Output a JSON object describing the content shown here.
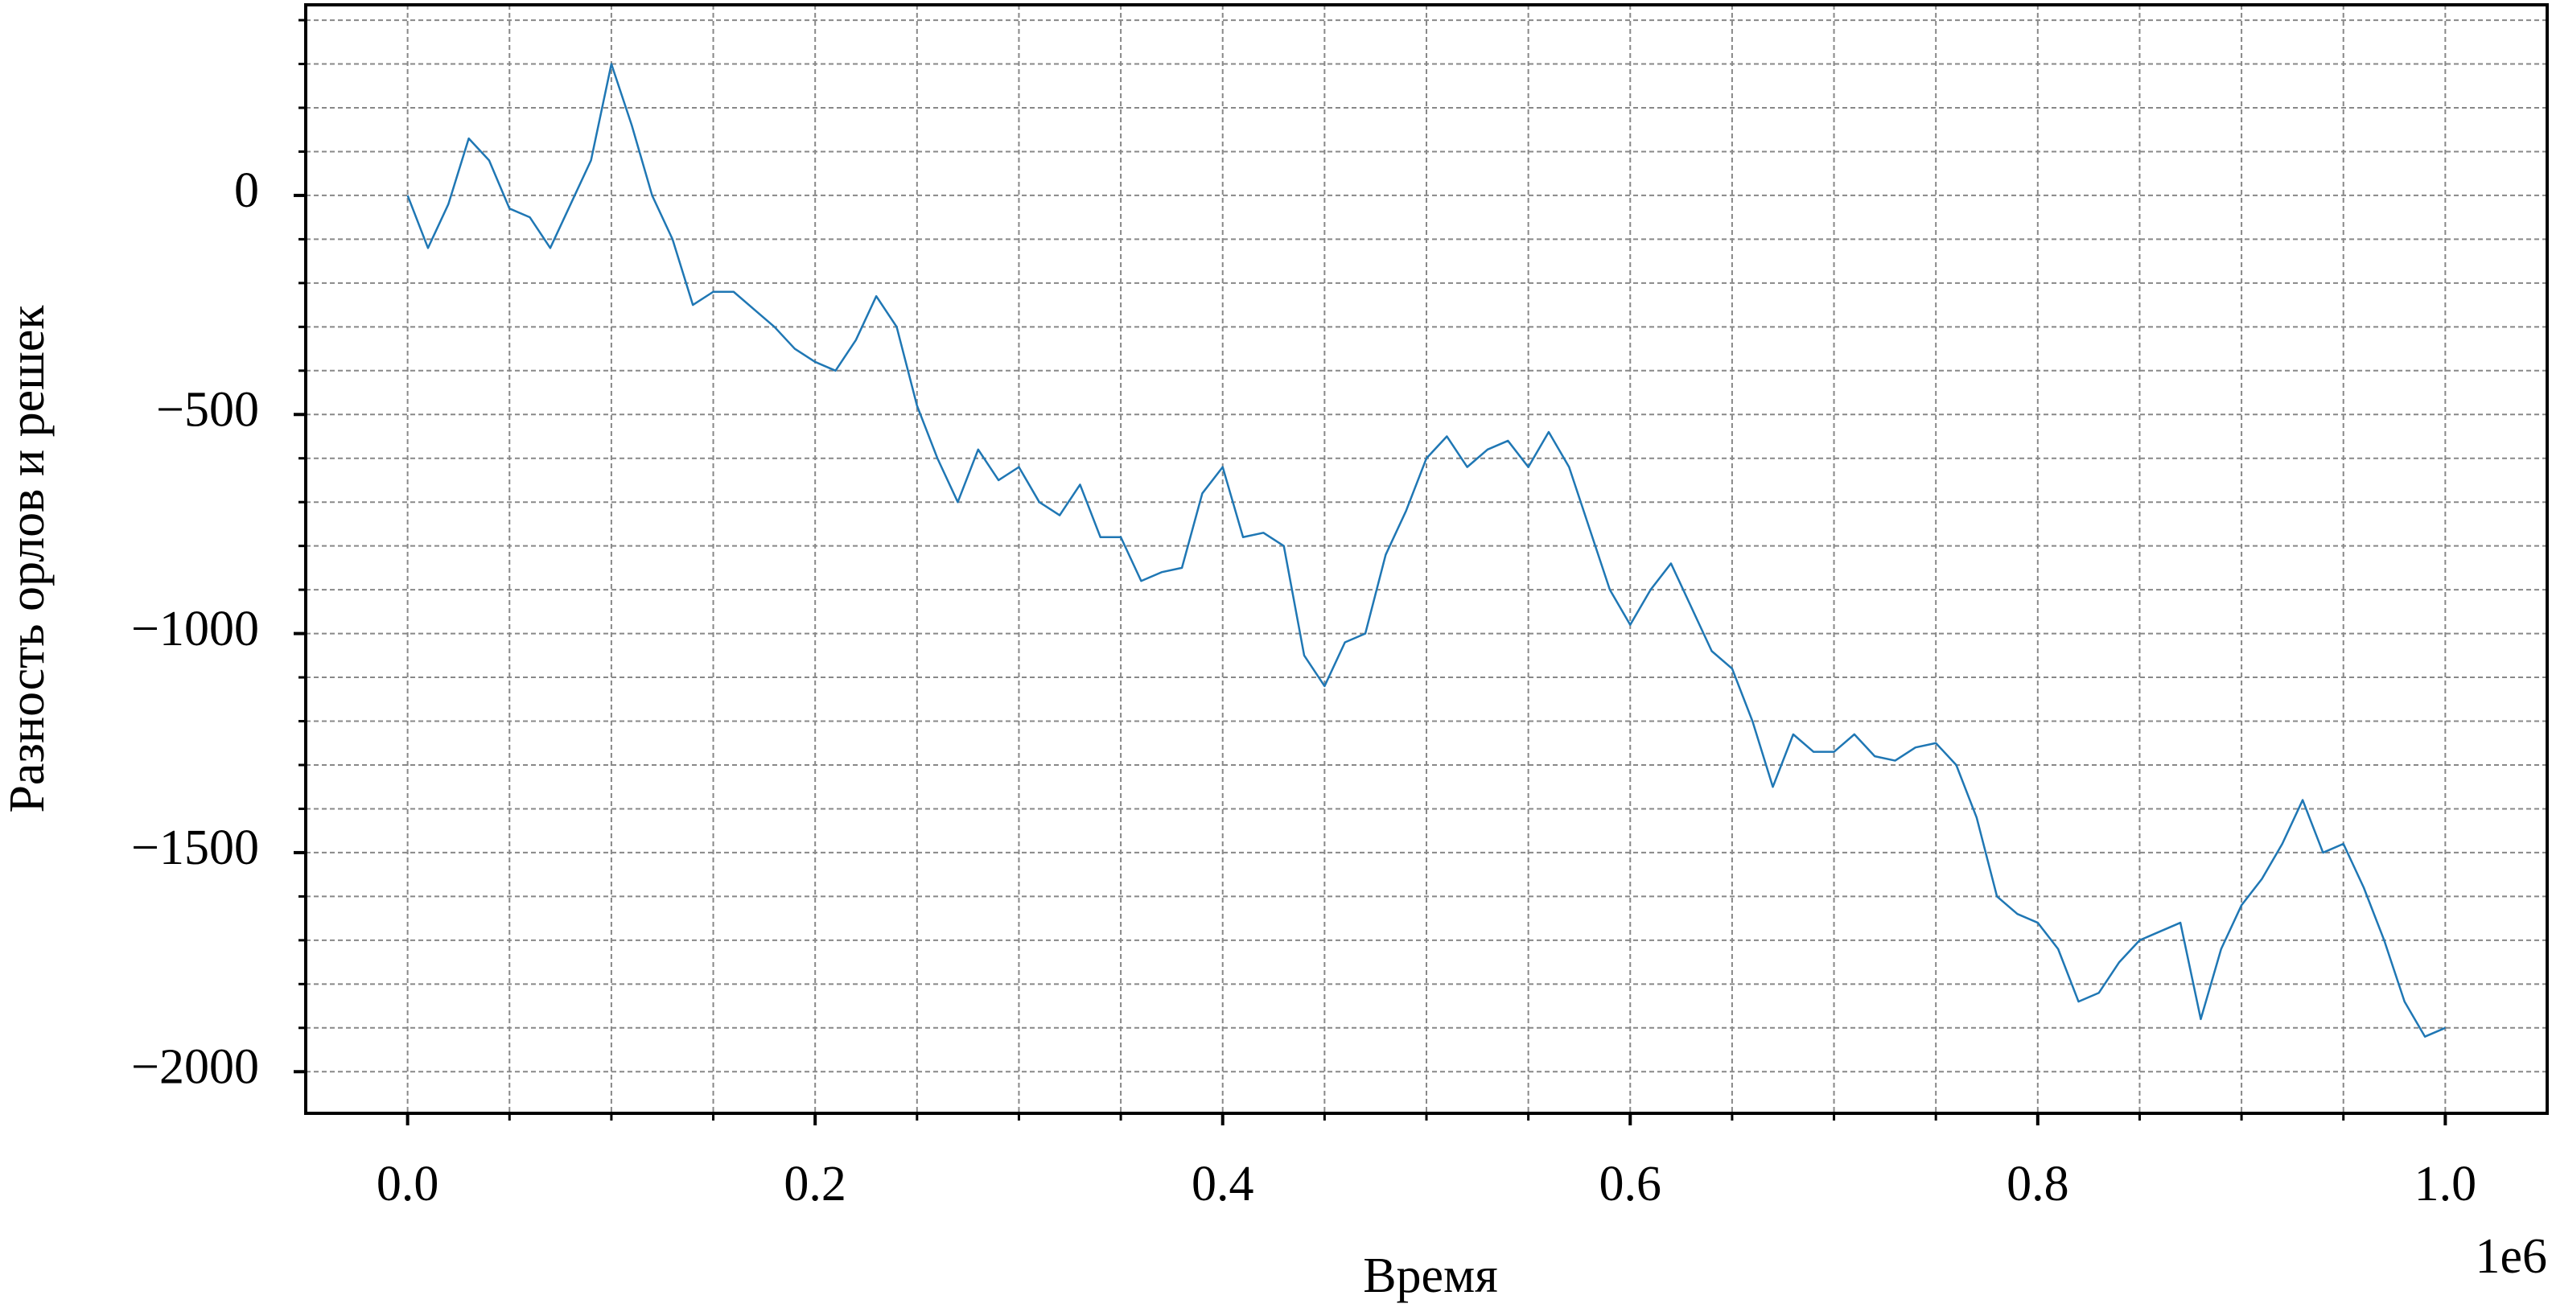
{
  "chart_data": {
    "type": "line",
    "xlabel": "Время",
    "ylabel": "Разность орлов и решек",
    "x_offset_label": "1e6",
    "x": [
      0,
      10000,
      20000,
      30000,
      40000,
      50000,
      60000,
      70000,
      80000,
      90000,
      100000,
      110000,
      120000,
      130000,
      140000,
      150000,
      160000,
      170000,
      180000,
      190000,
      200000,
      210000,
      220000,
      230000,
      240000,
      250000,
      260000,
      270000,
      280000,
      290000,
      300000,
      310000,
      320000,
      330000,
      340000,
      350000,
      360000,
      370000,
      380000,
      390000,
      400000,
      410000,
      420000,
      430000,
      440000,
      450000,
      460000,
      470000,
      480000,
      490000,
      500000,
      510000,
      520000,
      530000,
      540000,
      550000,
      560000,
      570000,
      580000,
      590000,
      600000,
      610000,
      620000,
      630000,
      640000,
      650000,
      660000,
      670000,
      680000,
      690000,
      700000,
      710000,
      720000,
      730000,
      740000,
      750000,
      760000,
      770000,
      780000,
      790000,
      800000,
      810000,
      820000,
      830000,
      840000,
      850000,
      860000,
      870000,
      880000,
      890000,
      900000,
      910000,
      920000,
      930000,
      940000,
      950000,
      960000,
      970000,
      980000,
      990000,
      1000000
    ],
    "series": [
      {
        "color": "#1f77b4",
        "values": [
          0,
          -120,
          -20,
          130,
          80,
          -30,
          -50,
          -120,
          -20,
          80,
          300,
          160,
          0,
          -100,
          -250,
          -220,
          -220,
          -260,
          -300,
          -350,
          -380,
          -400,
          -330,
          -230,
          -300,
          -480,
          -600,
          -700,
          -580,
          -650,
          -620,
          -700,
          -730,
          -660,
          -780,
          -780,
          -880,
          -860,
          -850,
          -680,
          -620,
          -780,
          -770,
          -800,
          -1050,
          -1120,
          -1020,
          -1000,
          -820,
          -720,
          -600,
          -550,
          -620,
          -580,
          -560,
          -620,
          -540,
          -620,
          -760,
          -900,
          -980,
          -900,
          -840,
          -940,
          -1040,
          -1080,
          -1200,
          -1350,
          -1230,
          -1270,
          -1270,
          -1230,
          -1280,
          -1290,
          -1260,
          -1250,
          -1300,
          -1420,
          -1600,
          -1640,
          -1660,
          -1720,
          -1840,
          -1820,
          -1750,
          -1700,
          -1680,
          -1660,
          -1880,
          -1720,
          -1620,
          -1560,
          -1480,
          -1380,
          -1500,
          -1480,
          -1580,
          -1700,
          -1840,
          -1920,
          -1900
        ]
      }
    ],
    "xlim": [
      -50000,
      1050000
    ],
    "ylim": [
      -2095,
      435
    ],
    "xticks": [
      {
        "value": 0,
        "label": "0.0"
      },
      {
        "value": 200000,
        "label": "0.2"
      },
      {
        "value": 400000,
        "label": "0.4"
      },
      {
        "value": 600000,
        "label": "0.6"
      },
      {
        "value": 800000,
        "label": "0.8"
      },
      {
        "value": 1000000,
        "label": "1.0"
      }
    ],
    "yticks": [
      {
        "value": -2000,
        "label": "−2000"
      },
      {
        "value": -1500,
        "label": "−1500"
      },
      {
        "value": -1000,
        "label": "−1000"
      },
      {
        "value": -500,
        "label": "−500"
      },
      0
    ],
    "xminorticks": [
      50000,
      100000,
      150000,
      250000,
      300000,
      350000,
      450000,
      500000,
      550000,
      650000,
      700000,
      750000,
      850000,
      900000,
      950000
    ],
    "yminorticks": [
      -1900,
      -1800,
      -1700,
      -1600,
      -1400,
      -1300,
      -1200,
      -1100,
      -900,
      -800,
      -700,
      -600,
      -400,
      -300,
      -200,
      -100,
      100,
      200,
      300,
      400
    ],
    "grid": true
  }
}
